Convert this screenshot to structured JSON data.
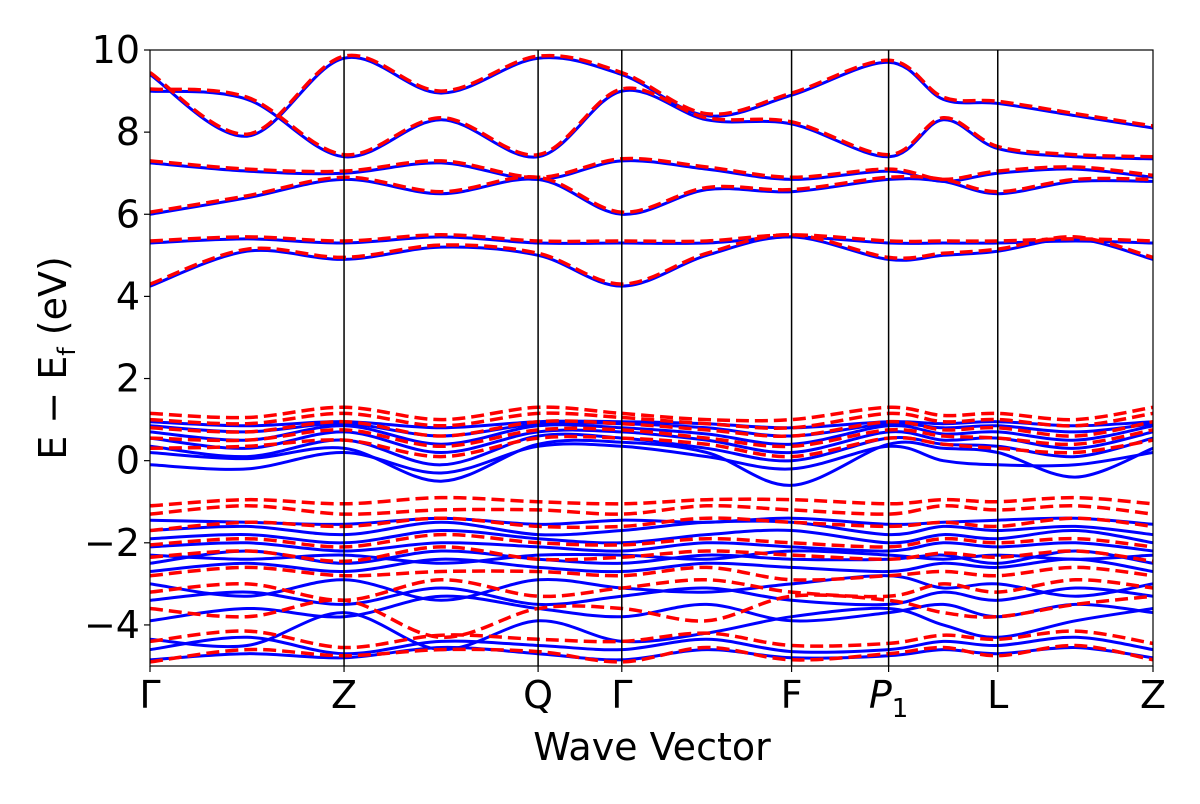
{
  "chart_data": {
    "type": "line",
    "title": "",
    "xlabel": "Wave Vector",
    "ylabel": "E − E",
    "ylabel_sub": "f",
    "ylabel_unit": " (eV)",
    "ylim": [
      -5,
      10
    ],
    "yticks": [
      -4,
      -2,
      0,
      2,
      4,
      6,
      8,
      10
    ],
    "ytick_labels": [
      "−4",
      "−2",
      "0",
      "2",
      "4",
      "6",
      "8",
      "10"
    ],
    "xlim": [
      0,
      8.27
    ],
    "kpoints": [
      {
        "pos": 0.0,
        "label": "Γ",
        "sub": ""
      },
      {
        "pos": 1.6,
        "label": "Z",
        "sub": ""
      },
      {
        "pos": 3.2,
        "label": "Q",
        "sub": ""
      },
      {
        "pos": 3.89,
        "label": "Γ",
        "sub": ""
      },
      {
        "pos": 5.29,
        "label": "F",
        "sub": ""
      },
      {
        "pos": 6.09,
        "label": "P",
        "sub": "1"
      },
      {
        "pos": 6.99,
        "label": "L",
        "sub": ""
      },
      {
        "pos": 8.27,
        "label": "Z",
        "sub": ""
      }
    ],
    "grid": false,
    "legend": "none",
    "series": [
      {
        "style": "solid",
        "color": "#0000ff"
      },
      {
        "style": "dashed",
        "color": "#ff0000"
      }
    ],
    "bands": {
      "node_x": [
        0.0,
        0.8,
        1.6,
        2.4,
        3.2,
        3.89,
        4.59,
        5.29,
        6.09,
        6.54,
        6.99,
        7.63,
        8.27
      ],
      "solid": [
        [
          -4.85,
          -4.7,
          -4.8,
          -4.55,
          -4.7,
          -4.85,
          -4.6,
          -4.8,
          -4.75,
          -4.6,
          -4.7,
          -4.55,
          -4.8
        ],
        [
          -4.6,
          -4.3,
          -4.7,
          -4.4,
          -4.5,
          -4.6,
          -4.35,
          -4.65,
          -4.6,
          -4.4,
          -4.5,
          -4.3,
          -4.6
        ],
        [
          -4.35,
          -4.5,
          -3.7,
          -4.6,
          -3.9,
          -4.4,
          -4.2,
          -3.8,
          -3.6,
          -4.0,
          -4.3,
          -3.9,
          -3.6
        ],
        [
          -3.9,
          -3.6,
          -3.8,
          -3.3,
          -3.6,
          -3.8,
          -3.5,
          -3.9,
          -3.7,
          -3.5,
          -3.8,
          -3.5,
          -3.7
        ],
        [
          -3.4,
          -3.2,
          -3.5,
          -3.1,
          -3.5,
          -3.3,
          -3.1,
          -3.4,
          -3.5,
          -3.2,
          -3.4,
          -3.1,
          -3.3
        ],
        [
          -3.0,
          -3.3,
          -2.9,
          -3.4,
          -2.9,
          -3.1,
          -3.2,
          -3.0,
          -2.8,
          -3.1,
          -3.0,
          -3.3,
          -3.0
        ],
        [
          -2.7,
          -2.5,
          -2.7,
          -2.4,
          -2.6,
          -2.7,
          -2.5,
          -2.6,
          -2.7,
          -2.5,
          -2.6,
          -2.4,
          -2.7
        ],
        [
          -2.5,
          -2.2,
          -2.5,
          -2.2,
          -2.4,
          -2.5,
          -2.3,
          -2.4,
          -2.4,
          -2.3,
          -2.5,
          -2.2,
          -2.5
        ],
        [
          -2.3,
          -2.4,
          -2.3,
          -2.5,
          -2.3,
          -2.3,
          -2.4,
          -2.2,
          -2.3,
          -2.4,
          -2.3,
          -2.4,
          -2.3
        ],
        [
          -2.1,
          -2.0,
          -2.2,
          -2.0,
          -2.1,
          -2.2,
          -2.0,
          -2.1,
          -2.2,
          -2.0,
          -2.1,
          -2.0,
          -2.2
        ],
        [
          -1.9,
          -1.8,
          -2.0,
          -1.7,
          -1.9,
          -2.0,
          -1.8,
          -1.7,
          -2.0,
          -1.8,
          -1.9,
          -1.7,
          -2.0
        ],
        [
          -1.7,
          -1.6,
          -1.8,
          -1.5,
          -1.8,
          -1.7,
          -1.5,
          -1.5,
          -1.8,
          -1.6,
          -1.7,
          -1.6,
          -1.8
        ],
        [
          -1.45,
          -1.5,
          -1.55,
          -1.4,
          -1.55,
          -1.45,
          -1.5,
          -1.4,
          -1.55,
          -1.5,
          -1.45,
          -1.4,
          -1.55
        ],
        [
          -0.1,
          -0.2,
          0.2,
          -0.3,
          0.35,
          0.35,
          0.1,
          -0.2,
          0.35,
          0.0,
          -0.1,
          -0.1,
          0.2
        ],
        [
          0.2,
          0.05,
          0.3,
          -0.5,
          0.4,
          0.45,
          0.2,
          -0.6,
          0.4,
          0.3,
          0.2,
          -0.4,
          0.3
        ],
        [
          0.35,
          0.1,
          0.5,
          -0.1,
          0.6,
          0.55,
          0.3,
          0.0,
          0.55,
          0.4,
          0.35,
          0.1,
          0.55
        ],
        [
          0.55,
          0.3,
          0.7,
          0.2,
          0.7,
          0.7,
          0.5,
          0.2,
          0.7,
          0.5,
          0.55,
          0.3,
          0.7
        ],
        [
          0.7,
          0.5,
          0.85,
          0.4,
          0.85,
          0.8,
          0.65,
          0.4,
          0.85,
          0.65,
          0.7,
          0.5,
          0.85
        ],
        [
          0.85,
          0.7,
          0.9,
          0.6,
          0.9,
          0.9,
          0.8,
          0.6,
          0.9,
          0.8,
          0.85,
          0.7,
          0.9
        ],
        [
          0.95,
          0.85,
          0.95,
          0.8,
          0.95,
          0.95,
          0.9,
          0.8,
          0.95,
          0.9,
          0.95,
          0.85,
          0.95
        ],
        [
          4.25,
          5.1,
          4.9,
          5.2,
          5.0,
          4.25,
          5.0,
          5.45,
          4.9,
          5.0,
          5.1,
          5.4,
          4.9
        ],
        [
          5.3,
          5.4,
          5.3,
          5.45,
          5.3,
          5.3,
          5.3,
          5.45,
          5.3,
          5.3,
          5.3,
          5.35,
          5.3
        ],
        [
          6.0,
          6.4,
          6.85,
          6.5,
          6.85,
          6.0,
          6.6,
          6.55,
          6.85,
          6.8,
          6.5,
          6.8,
          6.8
        ],
        [
          7.25,
          7.05,
          7.0,
          7.25,
          6.85,
          7.3,
          7.1,
          6.85,
          7.05,
          6.8,
          7.0,
          7.1,
          6.9
        ],
        [
          9.0,
          8.8,
          7.4,
          8.3,
          7.4,
          9.0,
          8.3,
          8.2,
          7.4,
          8.3,
          7.6,
          7.4,
          7.35
        ],
        [
          9.4,
          7.9,
          9.8,
          8.95,
          9.8,
          9.4,
          8.4,
          8.9,
          9.7,
          8.8,
          8.7,
          8.4,
          8.1
        ]
      ],
      "dashed": [
        [
          -4.9,
          -4.6,
          -4.75,
          -4.6,
          -4.65,
          -4.9,
          -4.55,
          -4.85,
          -4.7,
          -4.55,
          -4.75,
          -4.5,
          -4.85
        ],
        [
          -4.4,
          -4.15,
          -4.55,
          -4.25,
          -4.35,
          -4.4,
          -4.2,
          -4.5,
          -4.45,
          -4.25,
          -4.35,
          -4.15,
          -4.45
        ],
        [
          -3.6,
          -3.8,
          -3.4,
          -4.3,
          -3.6,
          -3.6,
          -3.9,
          -3.3,
          -3.4,
          -3.7,
          -3.8,
          -3.5,
          -3.3
        ],
        [
          -3.2,
          -3.0,
          -3.4,
          -2.9,
          -3.3,
          -3.1,
          -2.9,
          -3.2,
          -3.3,
          -3.0,
          -3.2,
          -2.9,
          -3.1
        ],
        [
          -2.8,
          -2.6,
          -2.8,
          -2.7,
          -2.7,
          -2.8,
          -2.6,
          -2.9,
          -2.8,
          -2.7,
          -2.8,
          -2.6,
          -2.8
        ],
        [
          -2.35,
          -2.2,
          -2.45,
          -2.1,
          -2.4,
          -2.35,
          -2.2,
          -2.3,
          -2.4,
          -2.25,
          -2.35,
          -2.2,
          -2.45
        ],
        [
          -2.05,
          -1.9,
          -2.1,
          -1.8,
          -2.0,
          -2.05,
          -1.9,
          -2.0,
          -2.1,
          -1.9,
          -2.0,
          -1.9,
          -2.1
        ],
        [
          -1.7,
          -1.5,
          -1.6,
          -1.4,
          -1.6,
          -1.6,
          -1.4,
          -1.5,
          -1.6,
          -1.5,
          -1.6,
          -1.4,
          -1.6
        ],
        [
          -1.3,
          -1.1,
          -1.3,
          -1.2,
          -1.2,
          -1.3,
          -1.1,
          -1.2,
          -1.3,
          -1.1,
          -1.2,
          -1.1,
          -1.3
        ],
        [
          -1.1,
          -0.95,
          -1.05,
          -0.9,
          -1.0,
          -1.05,
          -0.95,
          -0.95,
          -1.05,
          -0.95,
          -1.0,
          -0.9,
          -1.05
        ],
        [
          0.3,
          0.35,
          0.5,
          0.1,
          0.55,
          0.55,
          0.4,
          0.1,
          0.55,
          0.4,
          0.3,
          0.2,
          0.5
        ],
        [
          0.55,
          0.5,
          0.75,
          0.35,
          0.75,
          0.75,
          0.55,
          0.35,
          0.75,
          0.6,
          0.55,
          0.4,
          0.75
        ],
        [
          0.8,
          0.7,
          0.95,
          0.6,
          0.95,
          0.9,
          0.75,
          0.6,
          0.95,
          0.75,
          0.8,
          0.6,
          0.95
        ],
        [
          1.0,
          0.9,
          1.15,
          0.85,
          1.15,
          1.05,
          0.9,
          0.8,
          1.15,
          0.95,
          1.0,
          0.85,
          1.15
        ],
        [
          1.15,
          1.05,
          1.3,
          1.0,
          1.3,
          1.15,
          1.0,
          1.0,
          1.3,
          1.1,
          1.15,
          1.0,
          1.3
        ],
        [
          4.3,
          5.15,
          4.95,
          5.25,
          5.05,
          4.3,
          5.05,
          5.5,
          4.95,
          5.05,
          5.15,
          5.45,
          4.95
        ],
        [
          5.35,
          5.45,
          5.35,
          5.5,
          5.35,
          5.35,
          5.35,
          5.5,
          5.35,
          5.35,
          5.35,
          5.4,
          5.35
        ],
        [
          6.05,
          6.45,
          6.9,
          6.55,
          6.9,
          6.05,
          6.65,
          6.6,
          6.9,
          6.85,
          6.55,
          6.85,
          6.85
        ],
        [
          7.3,
          7.1,
          7.05,
          7.3,
          6.9,
          7.35,
          7.15,
          6.9,
          7.1,
          6.85,
          7.05,
          7.15,
          6.95
        ],
        [
          9.05,
          8.85,
          7.45,
          8.35,
          7.45,
          9.05,
          8.35,
          8.25,
          7.45,
          8.35,
          7.65,
          7.45,
          7.4
        ],
        [
          9.45,
          7.95,
          9.85,
          9.0,
          9.85,
          9.45,
          8.45,
          8.95,
          9.75,
          8.85,
          8.75,
          8.45,
          8.15
        ]
      ]
    }
  }
}
